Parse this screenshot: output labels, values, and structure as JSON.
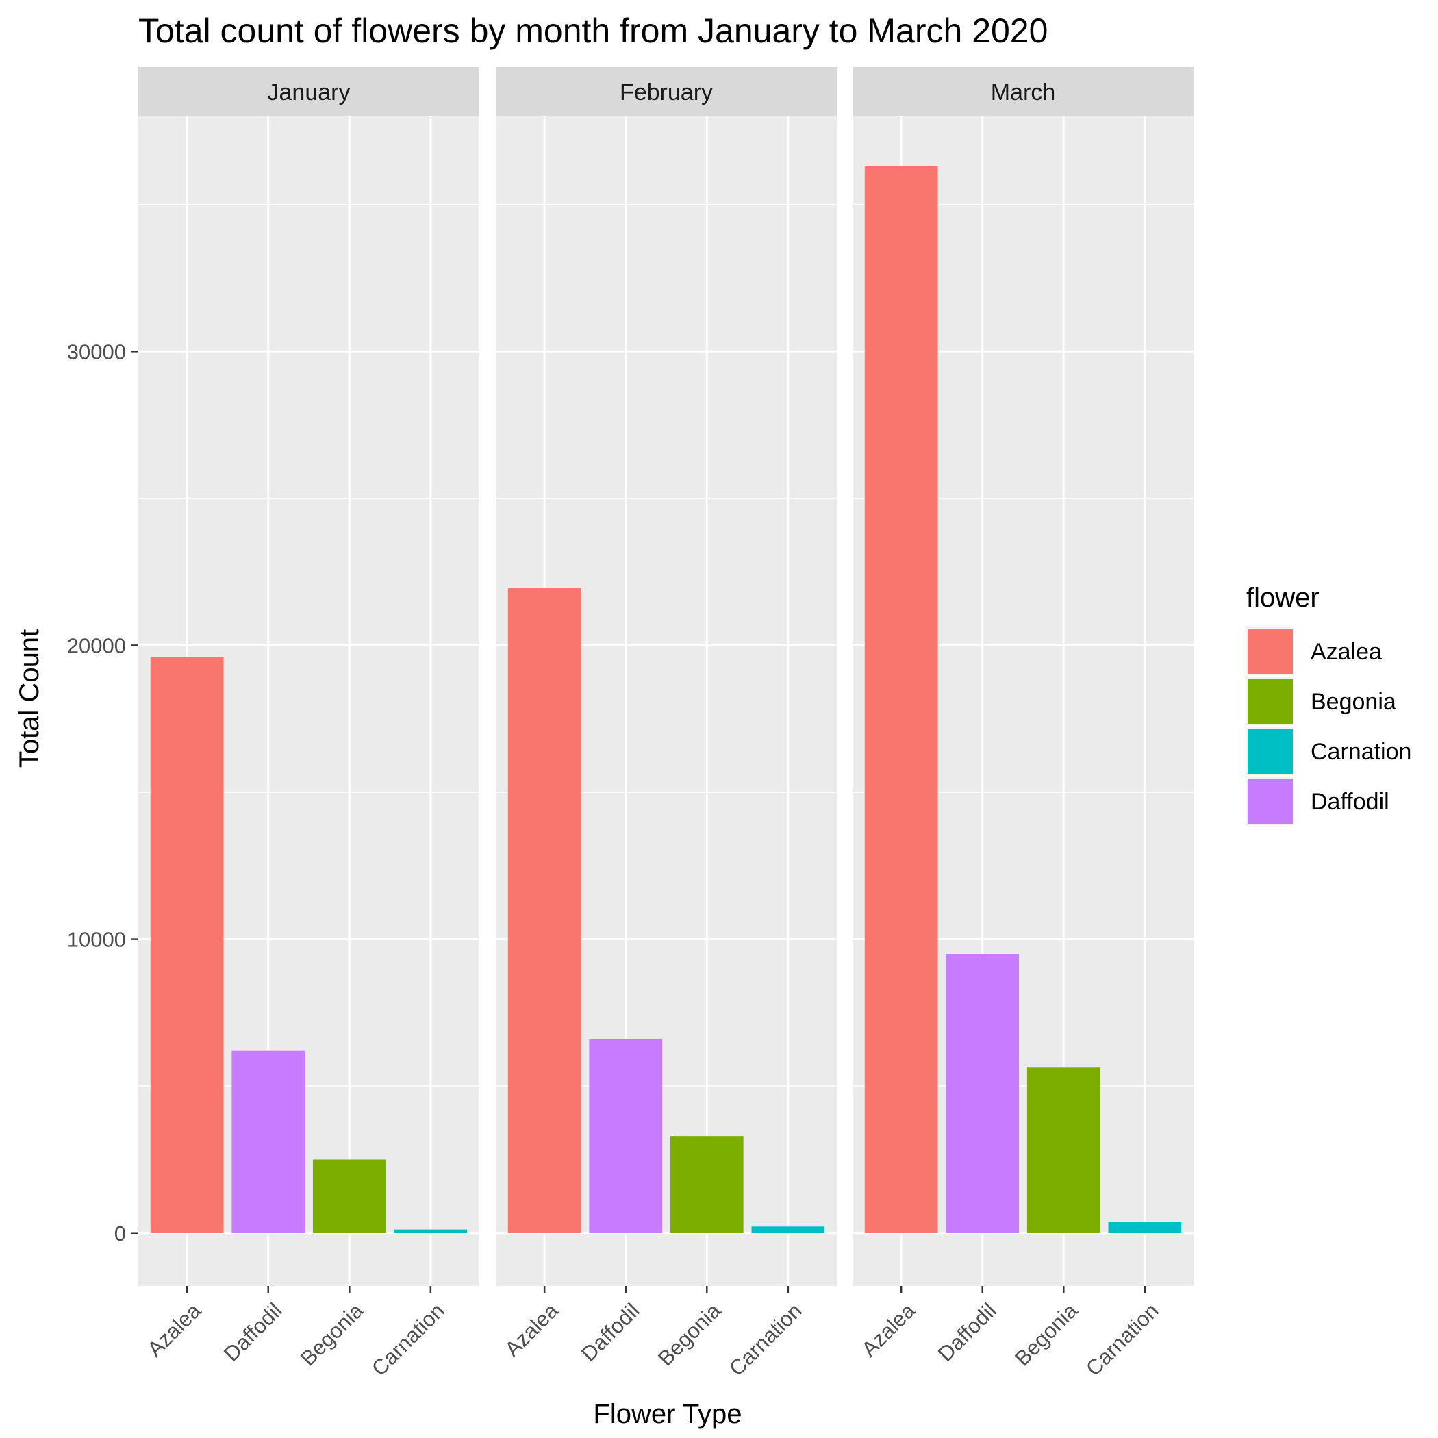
{
  "chart_data": {
    "type": "bar",
    "title": "Total count of flowers by month from January to March 2020",
    "xlabel": "Flower Type",
    "ylabel": "Total Count",
    "ylim": [
      -1800,
      38000
    ],
    "yticks": [
      0,
      10000,
      20000,
      30000
    ],
    "categories": [
      "Azalea",
      "Daffodil",
      "Begonia",
      "Carnation"
    ],
    "facets": [
      {
        "name": "January",
        "values": [
          19600,
          6200,
          2500,
          120
        ]
      },
      {
        "name": "February",
        "values": [
          21950,
          6600,
          3300,
          220
        ]
      },
      {
        "name": "March",
        "values": [
          36300,
          9500,
          5650,
          380
        ]
      }
    ],
    "legend": {
      "title": "flower",
      "placement": "right",
      "entries": [
        "Azalea",
        "Begonia",
        "Carnation",
        "Daffodil"
      ]
    },
    "colors": {
      "Azalea": "#F8766D",
      "Begonia": "#7CAE00",
      "Carnation": "#00BFC4",
      "Daffodil": "#C77CFF"
    },
    "grid": true,
    "panel_background": "#EBEBEB",
    "strip_background": "#D9D9D9"
  }
}
